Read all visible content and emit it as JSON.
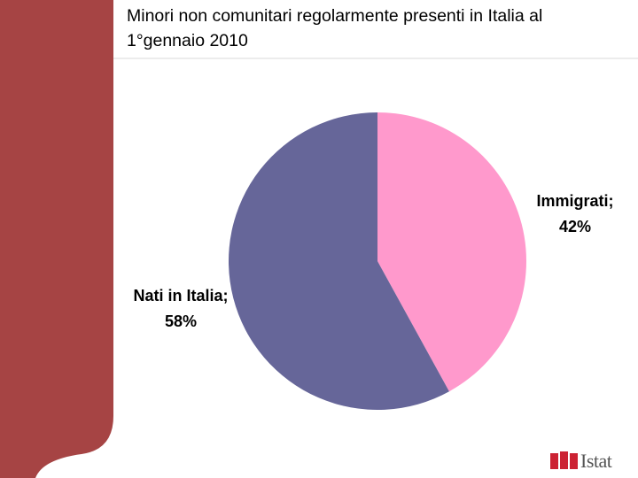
{
  "chart_data": {
    "type": "pie",
    "title": "Minori non comunitari regolarmente presenti in Italia al 1°gennaio 2010",
    "values": [
      42,
      58
    ],
    "value_labels": [
      "Immigrati; 42%",
      "Nati in Italia; 58%"
    ],
    "colors": [
      "#ff99cc",
      "#666699"
    ]
  },
  "logo": "Istat"
}
